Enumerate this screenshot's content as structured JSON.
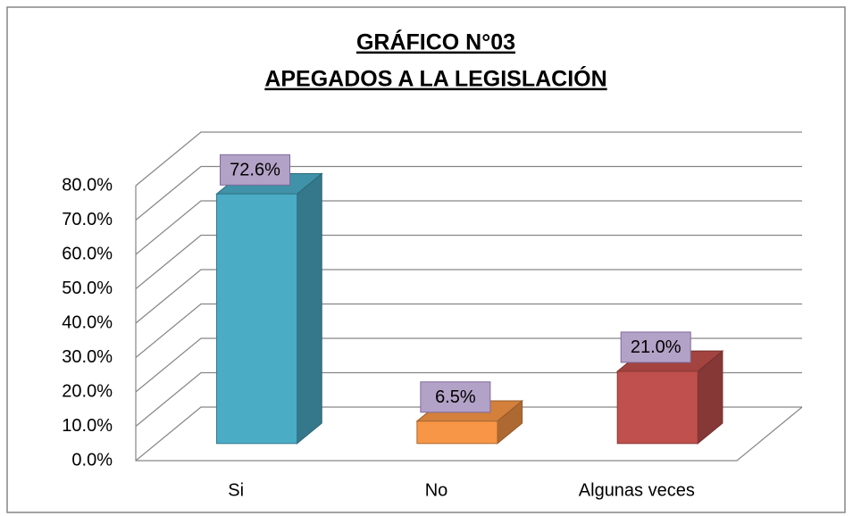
{
  "chart_data": {
    "type": "bar3d",
    "title": "GRÁFICO N°03",
    "subtitle": "APEGADOS A LA LEGISLACIÓN",
    "categories": [
      "Si",
      "No",
      "Algunas veces"
    ],
    "values": [
      72.6,
      6.5,
      21.0
    ],
    "value_labels": [
      "72.6%",
      "6.5%",
      "21.0%"
    ],
    "colors": [
      "#4bacc6",
      "#f79646",
      "#c0504d"
    ],
    "ylim": [
      0,
      80
    ],
    "yticks": [
      {
        "value": 0,
        "label": "0.0%"
      },
      {
        "value": 10,
        "label": "10.0%"
      },
      {
        "value": 20,
        "label": "20.0%"
      },
      {
        "value": 30,
        "label": "30.0%"
      },
      {
        "value": 40,
        "label": "40.0%"
      },
      {
        "value": 50,
        "label": "50.0%"
      },
      {
        "value": 60,
        "label": "60.0%"
      },
      {
        "value": 70,
        "label": "70.0%"
      },
      {
        "value": 80,
        "label": "80.0%"
      }
    ],
    "grid": true
  }
}
